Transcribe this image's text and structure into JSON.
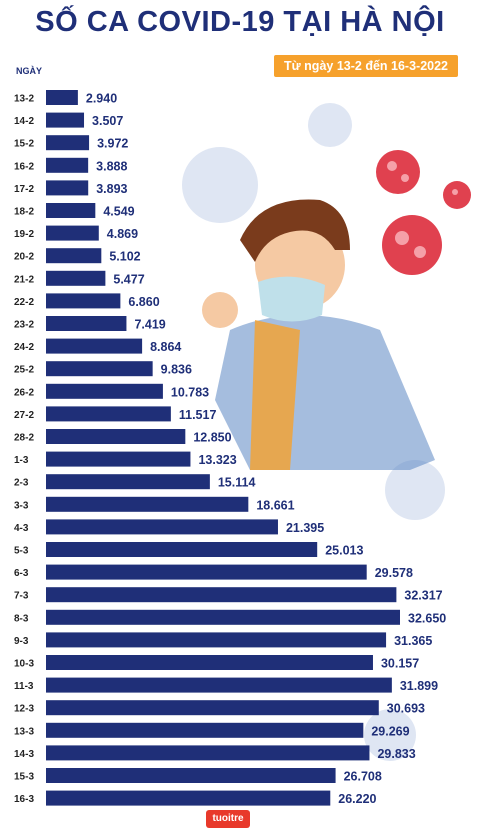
{
  "title": "SỐ CA COVID-19 TẠI HÀ NỘI",
  "subtitle": "Từ ngày 13-2 đến 16-3-2022",
  "logo_text": "tuoitre",
  "colors": {
    "bar": "#1f2f78",
    "title": "#1f2f78",
    "badge": "#f6a12c",
    "label": "#1f2f78"
  },
  "chart_data": {
    "type": "bar",
    "orientation": "horizontal",
    "ylabel": "NGÀY",
    "categories": [
      "13-2",
      "14-2",
      "15-2",
      "16-2",
      "17-2",
      "18-2",
      "19-2",
      "20-2",
      "21-2",
      "22-2",
      "23-2",
      "24-2",
      "25-2",
      "26-2",
      "27-2",
      "28-2",
      "1-3",
      "2-3",
      "3-3",
      "4-3",
      "5-3",
      "6-3",
      "7-3",
      "8-3",
      "9-3",
      "10-3",
      "11-3",
      "12-3",
      "13-3",
      "14-3",
      "15-3",
      "16-3"
    ],
    "values": [
      2940,
      3507,
      3972,
      3888,
      3893,
      4549,
      4869,
      5102,
      5477,
      6860,
      7419,
      8864,
      9836,
      10783,
      11517,
      12850,
      13323,
      15114,
      18661,
      21395,
      25013,
      29578,
      32317,
      32650,
      31365,
      30157,
      31899,
      30693,
      29269,
      29833,
      26708,
      26220
    ],
    "value_labels": [
      "2.940",
      "3.507",
      "3.972",
      "3.888",
      "3.893",
      "4.549",
      "4.869",
      "5.102",
      "5.477",
      "6.860",
      "7.419",
      "8.864",
      "9.836",
      "10.783",
      "11.517",
      "12.850",
      "13.323",
      "15.114",
      "18.661",
      "21.395",
      "25.013",
      "29.578",
      "32.317",
      "32.650",
      "31.365",
      "30.157",
      "31.899",
      "30.693",
      "29.269",
      "29.833",
      "26.708",
      "26.220"
    ],
    "xlim": [
      0,
      32650
    ]
  }
}
